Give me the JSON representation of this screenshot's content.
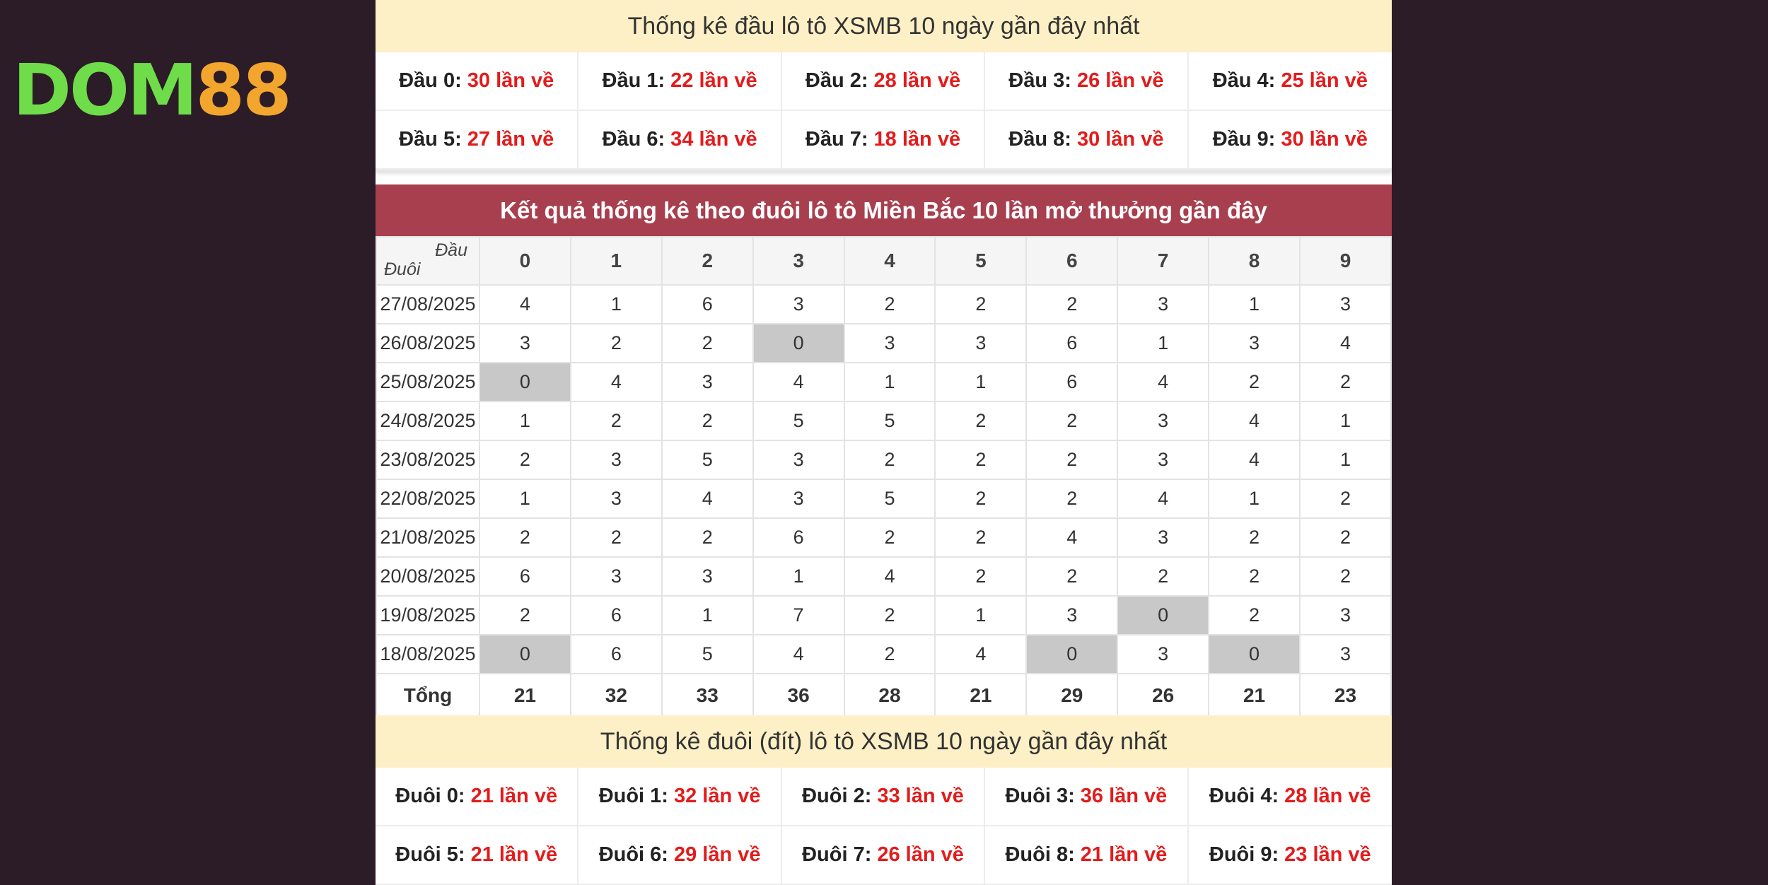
{
  "logo": {
    "part1": "DOM",
    "part2": "88"
  },
  "top_section": {
    "title": "Thống kê đầu lô tô XSMB 10 ngày gần đây nhất",
    "items": [
      {
        "label": "Đầu 0:",
        "value": "30 lần về"
      },
      {
        "label": "Đầu 1:",
        "value": "22 lần về"
      },
      {
        "label": "Đầu 2:",
        "value": "28 lần về"
      },
      {
        "label": "Đầu 3:",
        "value": "26 lần về"
      },
      {
        "label": "Đầu 4:",
        "value": "25 lần về"
      },
      {
        "label": "Đầu 5:",
        "value": "27 lần về"
      },
      {
        "label": "Đầu 6:",
        "value": "34 lần về"
      },
      {
        "label": "Đầu 7:",
        "value": "18 lần về"
      },
      {
        "label": "Đầu 8:",
        "value": "30 lần về"
      },
      {
        "label": "Đầu 9:",
        "value": "30 lần về"
      }
    ]
  },
  "table": {
    "title": "Kết quả thống kê theo đuôi lô tô Miền Bắc 10 lần mở thưởng gần đây",
    "corner_top": "Đầu",
    "corner_bottom": "Đuôi",
    "columns": [
      "0",
      "1",
      "2",
      "3",
      "4",
      "5",
      "6",
      "7",
      "8",
      "9"
    ],
    "rows": [
      {
        "date": "27/08/2025",
        "values": [
          "4",
          "1",
          "6",
          "3",
          "2",
          "2",
          "2",
          "3",
          "1",
          "3"
        ]
      },
      {
        "date": "26/08/2025",
        "values": [
          "3",
          "2",
          "2",
          "0",
          "3",
          "3",
          "6",
          "1",
          "3",
          "4"
        ]
      },
      {
        "date": "25/08/2025",
        "values": [
          "0",
          "4",
          "3",
          "4",
          "1",
          "1",
          "6",
          "4",
          "2",
          "2"
        ]
      },
      {
        "date": "24/08/2025",
        "values": [
          "1",
          "2",
          "2",
          "5",
          "5",
          "2",
          "2",
          "3",
          "4",
          "1"
        ]
      },
      {
        "date": "23/08/2025",
        "values": [
          "2",
          "3",
          "5",
          "3",
          "2",
          "2",
          "2",
          "3",
          "4",
          "1"
        ]
      },
      {
        "date": "22/08/2025",
        "values": [
          "1",
          "3",
          "4",
          "3",
          "5",
          "2",
          "2",
          "4",
          "1",
          "2"
        ]
      },
      {
        "date": "21/08/2025",
        "values": [
          "2",
          "2",
          "2",
          "6",
          "2",
          "2",
          "4",
          "3",
          "2",
          "2"
        ]
      },
      {
        "date": "20/08/2025",
        "values": [
          "6",
          "3",
          "3",
          "1",
          "4",
          "2",
          "2",
          "2",
          "2",
          "2"
        ]
      },
      {
        "date": "19/08/2025",
        "values": [
          "2",
          "6",
          "1",
          "7",
          "2",
          "1",
          "3",
          "0",
          "2",
          "3"
        ]
      },
      {
        "date": "18/08/2025",
        "values": [
          "0",
          "6",
          "5",
          "4",
          "2",
          "4",
          "0",
          "3",
          "0",
          "3"
        ]
      }
    ],
    "total_label": "Tổng",
    "totals": [
      "21",
      "32",
      "33",
      "36",
      "28",
      "21",
      "29",
      "26",
      "21",
      "23"
    ]
  },
  "bottom_section": {
    "title": "Thống kê đuôi (đít) lô tô XSMB 10 ngày gần đây nhất",
    "items": [
      {
        "label": "Đuôi 0:",
        "value": "21 lần về"
      },
      {
        "label": "Đuôi 1:",
        "value": "32 lần về"
      },
      {
        "label": "Đuôi 2:",
        "value": "33 lần về"
      },
      {
        "label": "Đuôi 3:",
        "value": "36 lần về"
      },
      {
        "label": "Đuôi 4:",
        "value": "28 lần về"
      },
      {
        "label": "Đuôi 5:",
        "value": "21 lần về"
      },
      {
        "label": "Đuôi 6:",
        "value": "29 lần về"
      },
      {
        "label": "Đuôi 7:",
        "value": "26 lần về"
      },
      {
        "label": "Đuôi 8:",
        "value": "21 lần về"
      },
      {
        "label": "Đuôi 9:",
        "value": "23 lần về"
      }
    ]
  },
  "colors": {
    "accent_red": "#e41b1b",
    "title_bar": "#a83f4f",
    "band": "#fdf0c6",
    "zero_cell": "#c8c8c8",
    "logo_green": "#6fdc4a",
    "logo_orange": "#f2a62e"
  }
}
